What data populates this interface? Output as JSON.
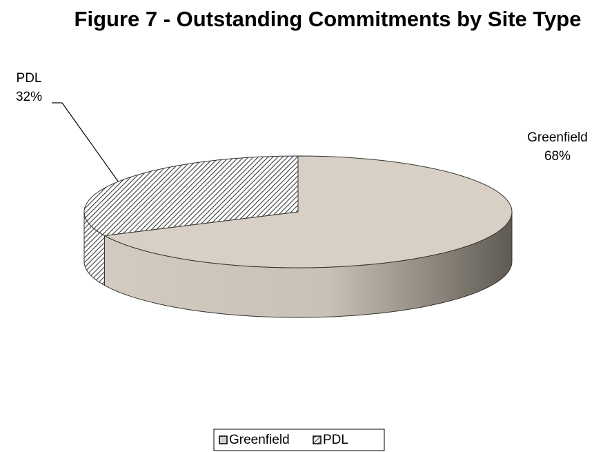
{
  "chart_data": {
    "type": "pie3d",
    "title": "Figure 7 - Outstanding Commitments by Site Type",
    "categories": [
      "Greenfield",
      "PDL"
    ],
    "values": [
      68,
      32
    ],
    "value_labels": [
      "68%",
      "32%"
    ],
    "colors": [
      "#d8d0c4",
      "#3a3a3a"
    ],
    "legend": "bottom"
  }
}
